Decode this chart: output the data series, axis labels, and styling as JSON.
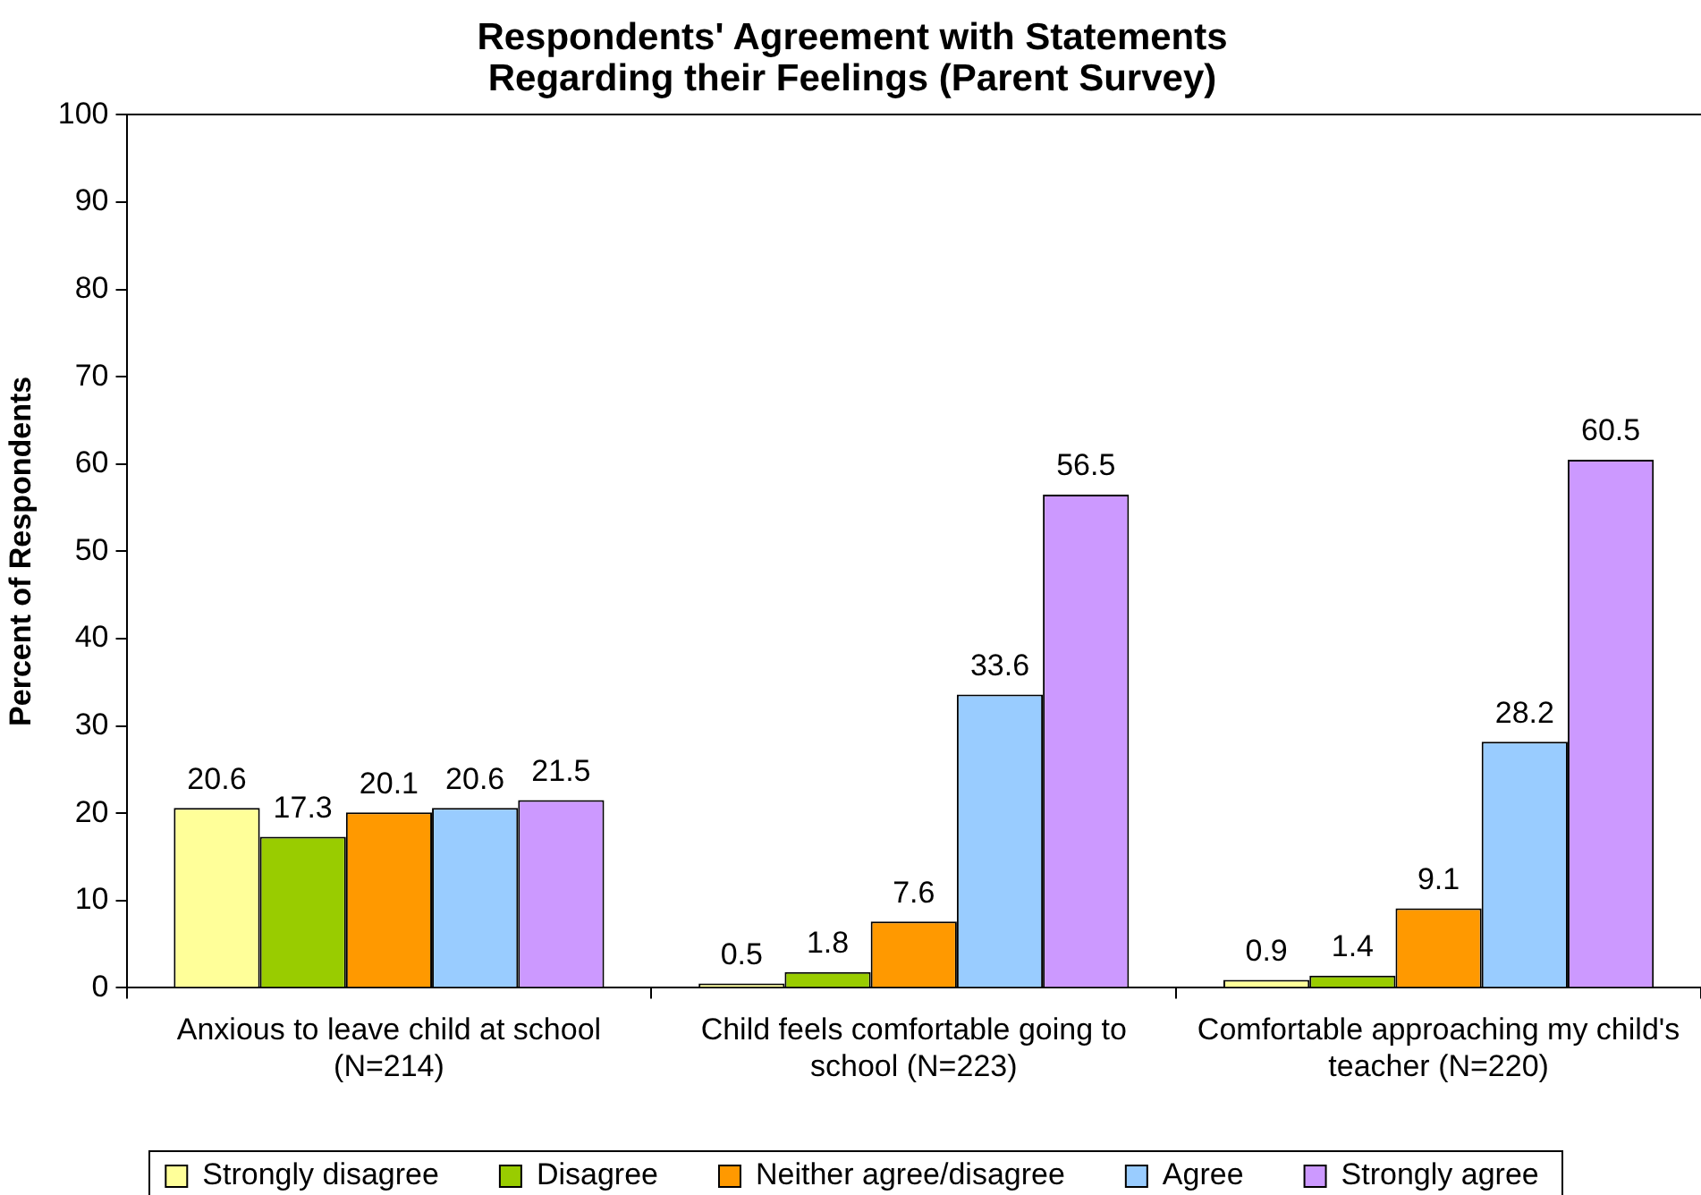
{
  "chart_data": {
    "type": "bar",
    "title": "Respondents' Agreement with Statements Regarding their Feelings (Parent Survey)",
    "ylabel": "Percent of Respondents",
    "categories": [
      "Anxious to leave child at school (N=214)",
      "Child feels comfortable going to school (N=223)",
      "Comfortable approaching my child's teacher (N=220)"
    ],
    "series": [
      {
        "name": "Strongly disagree",
        "color": "#ffff99",
        "values": [
          20.6,
          0.5,
          0.9
        ]
      },
      {
        "name": "Disagree",
        "color": "#99cc00",
        "values": [
          17.3,
          1.8,
          1.4
        ]
      },
      {
        "name": "Neither agree/disagree",
        "color": "#ff9900",
        "values": [
          20.1,
          7.6,
          9.1
        ]
      },
      {
        "name": "Agree",
        "color": "#99ccff",
        "values": [
          20.6,
          33.6,
          28.2
        ]
      },
      {
        "name": "Strongly agree",
        "color": "#cc99ff",
        "values": [
          21.5,
          56.5,
          60.5
        ]
      }
    ],
    "ylim": [
      0,
      100
    ],
    "yticks": [
      0,
      10,
      20,
      30,
      40,
      50,
      60,
      70,
      80,
      90,
      100
    ],
    "data_labels": true,
    "grid": false,
    "legend": "bottom"
  }
}
